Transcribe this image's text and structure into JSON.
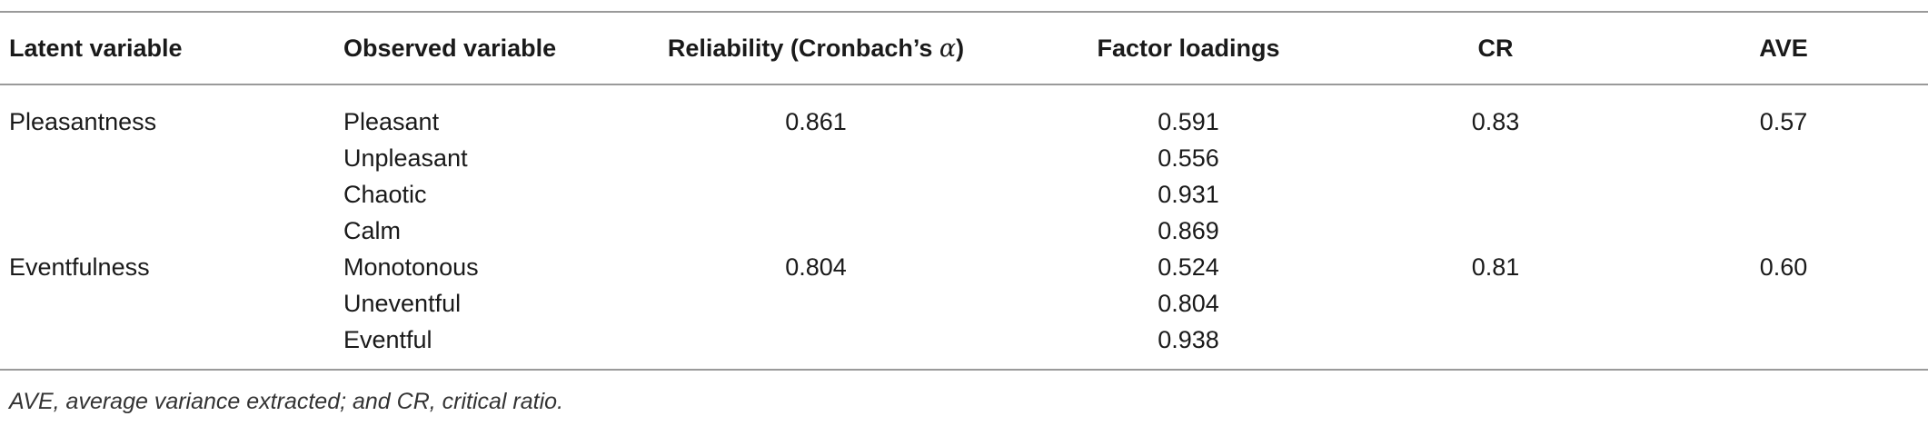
{
  "table": {
    "headers": {
      "latent": "Latent variable",
      "observed": "Observed variable",
      "reliability_prefix": "Reliability (Cronbach’s ",
      "reliability_alpha": "α",
      "reliability_suffix": ")",
      "loadings": "Factor loadings",
      "cr": "CR",
      "ave": "AVE"
    },
    "rows": [
      {
        "latent": "Pleasantness",
        "observed": "Pleasant",
        "reliability": "0.861",
        "loading": "0.591",
        "cr": "0.83",
        "ave": "0.57"
      },
      {
        "latent": "",
        "observed": "Unpleasant",
        "reliability": "",
        "loading": "0.556",
        "cr": "",
        "ave": ""
      },
      {
        "latent": "",
        "observed": "Chaotic",
        "reliability": "",
        "loading": "0.931",
        "cr": "",
        "ave": ""
      },
      {
        "latent": "",
        "observed": "Calm",
        "reliability": "",
        "loading": "0.869",
        "cr": "",
        "ave": ""
      },
      {
        "latent": "Eventfulness",
        "observed": "Monotonous",
        "reliability": "0.804",
        "loading": "0.524",
        "cr": "0.81",
        "ave": "0.60"
      },
      {
        "latent": "",
        "observed": "Uneventful",
        "reliability": "",
        "loading": "0.804",
        "cr": "",
        "ave": ""
      },
      {
        "latent": "",
        "observed": "Eventful",
        "reliability": "",
        "loading": "0.938",
        "cr": "",
        "ave": ""
      }
    ]
  },
  "footnote": "AVE, average variance extracted; and CR, critical ratio."
}
